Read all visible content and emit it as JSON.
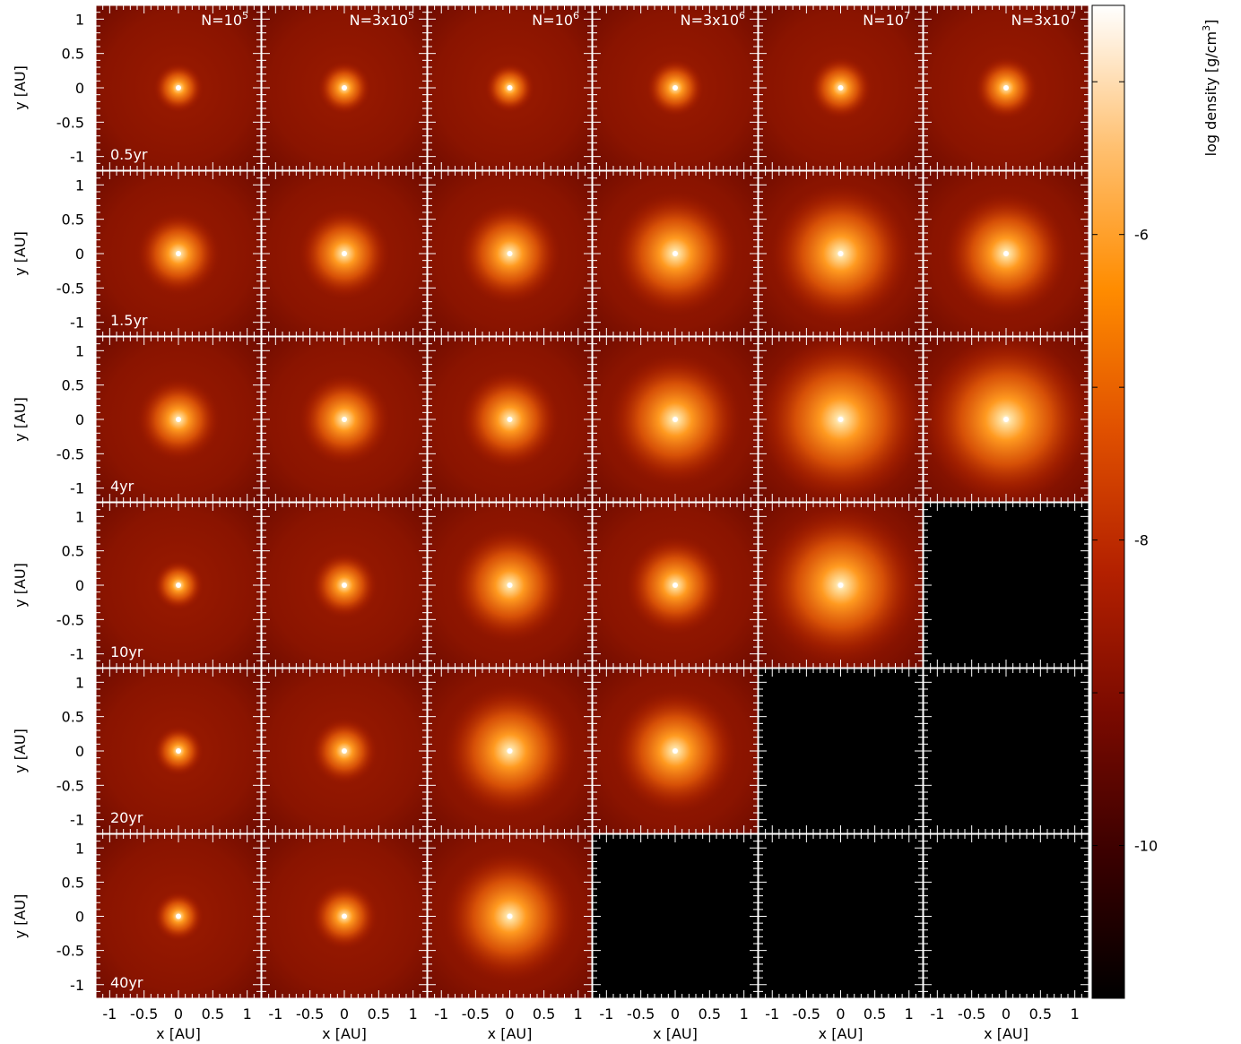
{
  "chart_data": {
    "type": "heatmap",
    "description_grid": "6 rows (times) x 6 columns (particle counts) of density slice panels",
    "columns": [
      {
        "base": "N=10",
        "exp": "5"
      },
      {
        "base": "N=3x10",
        "exp": "5"
      },
      {
        "base": "N=10",
        "exp": "6"
      },
      {
        "base": "N=3x10",
        "exp": "6"
      },
      {
        "base": "N=10",
        "exp": "7"
      },
      {
        "base": "N=3x10",
        "exp": "7"
      }
    ],
    "rows": [
      "0.5yr",
      "1.5yr",
      "4yr",
      "10yr",
      "20yr",
      "40yr"
    ],
    "available": [
      [
        true,
        true,
        true,
        true,
        true,
        true
      ],
      [
        true,
        true,
        true,
        true,
        true,
        true
      ],
      [
        true,
        true,
        true,
        true,
        true,
        true
      ],
      [
        true,
        true,
        true,
        true,
        true,
        false
      ],
      [
        true,
        true,
        true,
        true,
        false,
        false
      ],
      [
        true,
        true,
        true,
        false,
        false,
        false
      ]
    ],
    "core_radius_au": [
      [
        0.3,
        0.32,
        0.3,
        0.35,
        0.38,
        0.38
      ],
      [
        0.5,
        0.55,
        0.62,
        0.75,
        0.85,
        0.75
      ],
      [
        0.5,
        0.55,
        0.6,
        0.8,
        1.0,
        1.0
      ],
      [
        0.3,
        0.4,
        0.7,
        0.6,
        0.95,
        0
      ],
      [
        0.3,
        0.4,
        0.8,
        0.75,
        0,
        0
      ],
      [
        0.3,
        0.4,
        0.8,
        0,
        0,
        0
      ]
    ],
    "xlabel": "x [AU]",
    "ylabel": "y [AU]",
    "xlim": [
      -1.2,
      1.2
    ],
    "ylim": [
      -1.2,
      1.2
    ],
    "x_ticks": [
      "-1",
      "-0.5",
      "0",
      "0.5",
      "1"
    ],
    "y_ticks": [
      "1",
      "0.5",
      "0",
      "-0.5",
      "-1"
    ],
    "tick_values": [
      -1,
      -0.5,
      0,
      0.5,
      1
    ],
    "colorbar": {
      "label": "log density [g/cm",
      "label_sup": "3",
      "label_end": "]",
      "range": [
        -11,
        -4.5
      ],
      "ticks": [
        "-6",
        "-8",
        "-10"
      ],
      "tick_values": [
        -6,
        -8,
        -10
      ],
      "colors": [
        "#000000",
        "#3a0000",
        "#7a0a00",
        "#b32000",
        "#e05000",
        "#ff8c00",
        "#ffc070",
        "#ffffff"
      ]
    }
  }
}
